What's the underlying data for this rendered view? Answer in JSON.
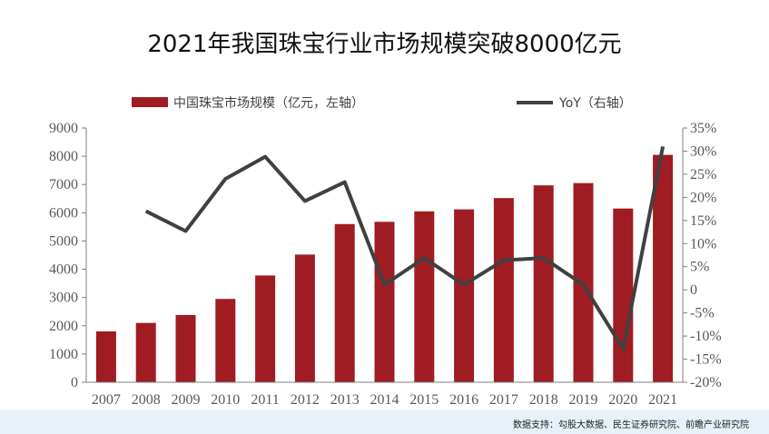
{
  "title": "2021年我国珠宝行业市场规模突破8000亿元",
  "source_note": "数据支持：勾股大数据、民生证券研究院、前瞻产业研究院",
  "colors": {
    "bar": "#9e1c22",
    "line": "#404040",
    "axis_text": "#595959",
    "footer_band": "#e6f1f8"
  },
  "chart_data": {
    "type": "bar",
    "categories": [
      "2007",
      "2008",
      "2009",
      "2010",
      "2011",
      "2012",
      "2013",
      "2014",
      "2015",
      "2016",
      "2017",
      "2018",
      "2019",
      "2020",
      "2021"
    ],
    "series": [
      {
        "name": "中国珠宝市场规模（亿元，左轴）",
        "type": "bar",
        "axis": "left",
        "values": [
          1800,
          2100,
          2380,
          2950,
          3780,
          4520,
          5600,
          5680,
          6050,
          6120,
          6520,
          6970,
          7050,
          6150,
          8050
        ]
      },
      {
        "name": "YoY（右轴）",
        "type": "line",
        "axis": "right",
        "values": [
          null,
          17,
          12.7,
          24,
          28.8,
          19.2,
          23.3,
          1.1,
          6.9,
          1.1,
          6.4,
          6.9,
          1.1,
          -12.8,
          31
        ]
      }
    ],
    "y_left": {
      "ylim": [
        0,
        9000
      ],
      "ticks": [
        "0",
        "1000",
        "2000",
        "3000",
        "4000",
        "5000",
        "6000",
        "7000",
        "8000",
        "9000"
      ],
      "values": [
        0,
        1000,
        2000,
        3000,
        4000,
        5000,
        6000,
        7000,
        8000,
        9000
      ]
    },
    "y_right": {
      "ylim": [
        -20,
        35
      ],
      "ticks": [
        "-20%",
        "-15%",
        "-10%",
        "-5%",
        "0",
        "5%",
        "10%",
        "15%",
        "20%",
        "25%",
        "30%",
        "35%"
      ],
      "values": [
        -20,
        -15,
        -10,
        -5,
        0,
        5,
        10,
        15,
        20,
        25,
        30,
        35
      ]
    },
    "grid": false,
    "legend": "top"
  }
}
